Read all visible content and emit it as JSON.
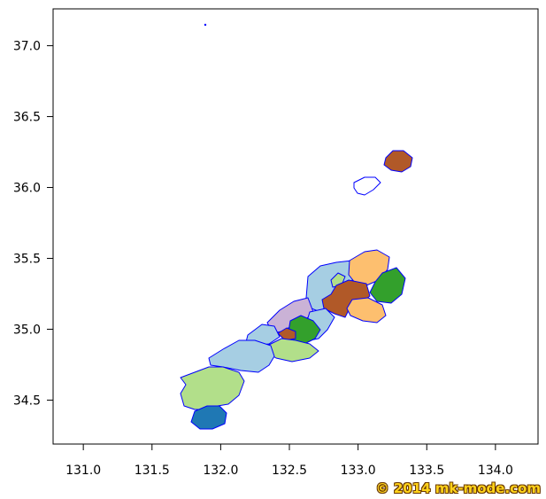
{
  "map": {
    "x_ticks": [
      "131.0",
      "131.5",
      "132.0",
      "132.5",
      "133.0",
      "133.5",
      "134.0"
    ],
    "y_ticks": [
      "34.5",
      "35.0",
      "35.5",
      "36.0",
      "36.5",
      "37.0"
    ],
    "xlim": [
      130.78,
      134.31
    ],
    "ylim": [
      34.19,
      37.26
    ],
    "border_color": "#0000ff",
    "regions": [
      {
        "name": "ne-cream",
        "color": "#fdbf6f"
      },
      {
        "name": "ne-green",
        "color": "#33a02c"
      },
      {
        "name": "ne-brown",
        "color": "#b15928"
      },
      {
        "name": "ne-lightblue",
        "color": "#a6cee3"
      },
      {
        "name": "ne-lightgreen-islet",
        "color": "#b2df8a"
      },
      {
        "name": "se-cream",
        "color": "#fdbf6f"
      },
      {
        "name": "mid-lavender",
        "color": "#cab2d6"
      },
      {
        "name": "mid-lightblue",
        "color": "#a6cee3"
      },
      {
        "name": "mid-green",
        "color": "#33a02c"
      },
      {
        "name": "mid-brown-small",
        "color": "#b15928"
      },
      {
        "name": "coast-lightblue",
        "color": "#a6cee3"
      },
      {
        "name": "south-lightgreen",
        "color": "#b2df8a"
      },
      {
        "name": "west-lightblue",
        "color": "#a6cee3"
      },
      {
        "name": "sw-lightgreen",
        "color": "#b2df8a"
      },
      {
        "name": "sw-blue",
        "color": "#1f78b4"
      },
      {
        "name": "oki-dozen",
        "color": "#ffffff"
      },
      {
        "name": "oki-dogo",
        "color": "#b15928"
      }
    ]
  },
  "credit": "© 2014 mk-mode.com"
}
